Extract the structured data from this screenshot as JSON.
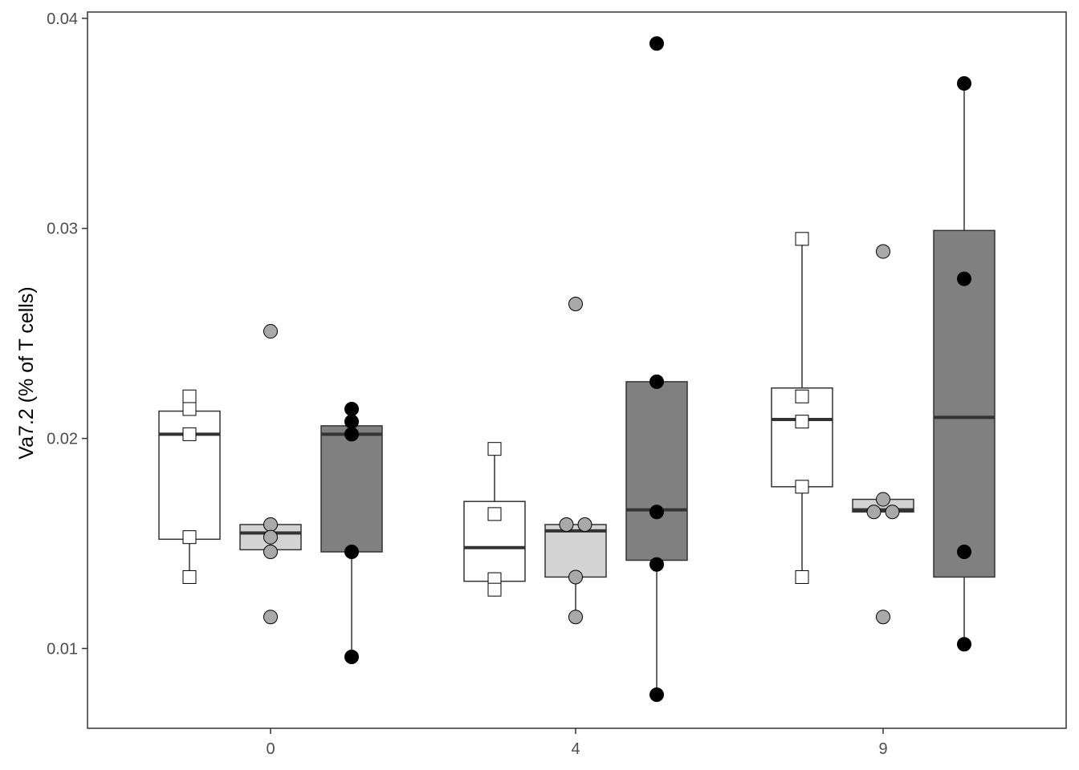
{
  "chart_data": {
    "type": "box",
    "title": "",
    "xlabel": "",
    "ylabel": "Va7.2 (% of T cells)",
    "ylim": [
      0.0062,
      0.0403
    ],
    "x_ticks": [
      "0",
      "4",
      "9"
    ],
    "y_ticks": [
      "0.01",
      "0.02",
      "0.03",
      "0.04"
    ],
    "y_tick_values": [
      0.01,
      0.02,
      0.03,
      0.04
    ],
    "grid": false,
    "legend": "none",
    "groups": [
      {
        "x": "0",
        "boxes": [
          {
            "fill": "#ffffff",
            "point_color": "#ffffff",
            "point_shape": "square",
            "q1": 0.0152,
            "median": 0.0202,
            "q3": 0.0213,
            "whisker_low": 0.0134,
            "whisker_high": 0.022,
            "points": [
              0.022,
              0.0214,
              0.0202,
              0.0153,
              0.0134
            ]
          },
          {
            "fill": "#d3d3d3",
            "point_color": "#a9a9a9",
            "point_shape": "circle",
            "q1": 0.0147,
            "median": 0.0155,
            "q3": 0.0159,
            "whisker_low": 0.0147,
            "whisker_high": 0.0159,
            "points": [
              0.0251,
              0.0159,
              0.0153,
              0.0146,
              0.0115
            ]
          },
          {
            "fill": "#808080",
            "point_color": "#000000",
            "point_shape": "circle",
            "q1": 0.0146,
            "median": 0.0202,
            "q3": 0.0206,
            "whisker_low": 0.0096,
            "whisker_high": 0.0214,
            "points": [
              0.0214,
              0.0208,
              0.0202,
              0.0146,
              0.0096
            ]
          }
        ]
      },
      {
        "x": "4",
        "boxes": [
          {
            "fill": "#ffffff",
            "point_color": "#ffffff",
            "point_shape": "square",
            "q1": 0.0132,
            "median": 0.0148,
            "q3": 0.017,
            "whisker_low": 0.0128,
            "whisker_high": 0.0195,
            "points": [
              0.0195,
              0.0164,
              0.0133,
              0.0128
            ]
          },
          {
            "fill": "#d3d3d3",
            "point_color": "#a9a9a9",
            "point_shape": "circle",
            "q1": 0.0134,
            "median": 0.0156,
            "q3": 0.0159,
            "whisker_low": 0.0115,
            "whisker_high": 0.0159,
            "points": [
              0.0264,
              0.0159,
              0.0159,
              0.0134,
              0.0115
            ]
          },
          {
            "fill": "#808080",
            "point_color": "#000000",
            "point_shape": "circle",
            "q1": 0.0142,
            "median": 0.0166,
            "q3": 0.0227,
            "whisker_low": 0.0078,
            "whisker_high": 0.0227,
            "points": [
              0.0388,
              0.0227,
              0.0165,
              0.014,
              0.0078
            ]
          }
        ]
      },
      {
        "x": "9",
        "boxes": [
          {
            "fill": "#ffffff",
            "point_color": "#ffffff",
            "point_shape": "square",
            "q1": 0.0177,
            "median": 0.0209,
            "q3": 0.0224,
            "whisker_low": 0.0134,
            "whisker_high": 0.0295,
            "points": [
              0.0295,
              0.022,
              0.0208,
              0.0177,
              0.0134
            ]
          },
          {
            "fill": "#d3d3d3",
            "point_color": "#a9a9a9",
            "point_shape": "circle",
            "q1": 0.0165,
            "median": 0.0166,
            "q3": 0.0171,
            "whisker_low": 0.0165,
            "whisker_high": 0.0171,
            "points": [
              0.0289,
              0.0171,
              0.0165,
              0.0165,
              0.0115
            ]
          },
          {
            "fill": "#808080",
            "point_color": "#000000",
            "point_shape": "circle",
            "q1": 0.0134,
            "median": 0.021,
            "q3": 0.0299,
            "whisker_low": 0.0102,
            "whisker_high": 0.0369,
            "points": [
              0.0369,
              0.0276,
              0.0146,
              0.0102
            ]
          }
        ]
      }
    ]
  }
}
